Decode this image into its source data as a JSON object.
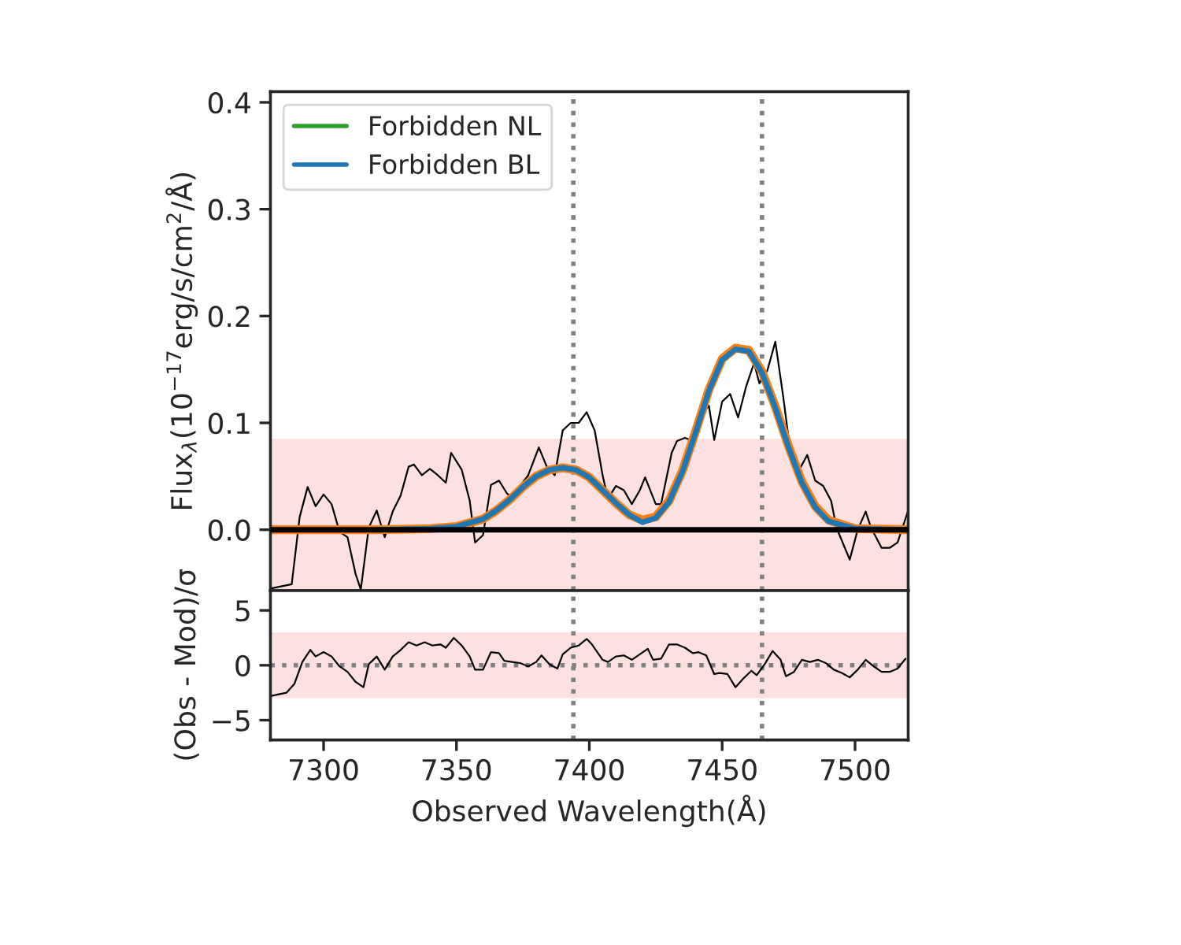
{
  "chart_data": [
    {
      "type": "line",
      "ylabel": "Flux$_{λ}$(10$^{−17}$erg/s/cm$^{2}$/Å)",
      "xlim": [
        7280,
        7520
      ],
      "xticks": [
        7300,
        7350,
        7400,
        7450,
        7500
      ],
      "ylim": [
        -0.057,
        0.41
      ],
      "yticks": [
        {
          "value": 0,
          "label": "0.0"
        },
        {
          "value": 0.1,
          "label": "0.1"
        },
        {
          "value": 0.2,
          "label": "0.2"
        },
        {
          "value": 0.3,
          "label": "0.3"
        },
        {
          "value": 0.4,
          "label": "0.4"
        }
      ],
      "tick_labels": "y",
      "grid": false,
      "legend": "top left",
      "line_style": "solid",
      "marker": "none",
      "series": [
        {
          "color": "#000000",
          "x": [
            7280,
            7288,
            7291,
            7294,
            7297,
            7300,
            7303,
            7306,
            7309,
            7312,
            7314,
            7317,
            7320,
            7323,
            7326,
            7329,
            7332,
            7334,
            7337,
            7340,
            7343,
            7346,
            7348,
            7352,
            7355,
            7357,
            7360,
            7363,
            7366,
            7369,
            7371,
            7374,
            7377,
            7381,
            7384,
            7387,
            7390,
            7393,
            7396,
            7399,
            7402,
            7405,
            7407,
            7410,
            7413,
            7416,
            7419,
            7421,
            7425,
            7427,
            7431,
            7433,
            7436,
            7439,
            7442,
            7445,
            7447,
            7450,
            7453,
            7456,
            7459,
            7462,
            7464,
            7467,
            7470,
            7473,
            7476,
            7479,
            7482,
            7485,
            7488,
            7491,
            7493,
            7495,
            7498,
            7501,
            7504,
            7506,
            7510,
            7513,
            7516,
            7520
          ],
          "values": [
            -0.055,
            -0.051,
            0.012,
            0.04,
            0.022,
            0.033,
            0.024,
            -0.002,
            -0.007,
            -0.041,
            -0.056,
            0.002,
            0.018,
            -0.007,
            0.017,
            0.032,
            0.059,
            0.061,
            0.051,
            0.057,
            0.051,
            0.044,
            0.072,
            0.056,
            0.027,
            -0.012,
            -0.005,
            0.042,
            0.046,
            0.034,
            0.03,
            0.041,
            0.051,
            0.077,
            0.059,
            0.051,
            0.093,
            0.1,
            0.1,
            0.11,
            0.093,
            0.051,
            0.029,
            0.041,
            0.037,
            0.024,
            0.037,
            0.049,
            0.024,
            0.024,
            0.072,
            0.083,
            0.086,
            0.083,
            0.107,
            0.116,
            0.084,
            0.12,
            0.127,
            0.105,
            0.134,
            0.156,
            0.137,
            0.149,
            0.176,
            0.124,
            0.066,
            0.056,
            0.07,
            0.046,
            0.041,
            0.027,
            0.002,
            -0.01,
            -0.028,
            0.0,
            0.017,
            0.002,
            -0.017,
            -0.017,
            -0.012,
            0.018
          ]
        },
        {
          "color": "#ff7f0e",
          "x": [
            7280,
            7300,
            7320,
            7340,
            7350,
            7360,
            7365,
            7370,
            7375,
            7380,
            7385,
            7390,
            7395,
            7400,
            7405,
            7410,
            7415,
            7420,
            7425,
            7430,
            7435,
            7440,
            7445,
            7450,
            7455,
            7460,
            7465,
            7470,
            7475,
            7480,
            7485,
            7490,
            7500,
            7520
          ],
          "values": [
            0,
            0,
            0,
            0.001,
            0.003,
            0.01,
            0.018,
            0.028,
            0.04,
            0.05,
            0.056,
            0.058,
            0.056,
            0.049,
            0.037,
            0.025,
            0.014,
            0.009,
            0.012,
            0.027,
            0.055,
            0.092,
            0.131,
            0.16,
            0.17,
            0.168,
            0.148,
            0.115,
            0.078,
            0.045,
            0.022,
            0.009,
            0.001,
            0
          ]
        },
        {
          "name": "Forbidden NL",
          "color": "#2ca02c",
          "values": [
            null
          ]
        },
        {
          "name": "Forbidden BL",
          "color": "#1f77b4",
          "x": [
            7320,
            7340,
            7350,
            7360,
            7365,
            7370,
            7375,
            7380,
            7385,
            7390,
            7395,
            7400,
            7405,
            7410,
            7415,
            7420,
            7425,
            7430,
            7435,
            7440,
            7445,
            7450,
            7455,
            7460,
            7465,
            7470,
            7475,
            7480,
            7485,
            7490,
            7500,
            7520
          ],
          "values": [
            0,
            0.001,
            0.003,
            0.01,
            0.018,
            0.028,
            0.04,
            0.05,
            0.056,
            0.058,
            0.056,
            0.049,
            0.037,
            0.025,
            0.014,
            0.007,
            0.011,
            0.026,
            0.054,
            0.091,
            0.13,
            0.159,
            0.169,
            0.167,
            0.147,
            0.114,
            0.077,
            0.044,
            0.021,
            0.008,
            0.001,
            0
          ]
        }
      ],
      "ref_lines": [
        {
          "axis": "x",
          "value": 7394,
          "color": "#808080",
          "line_style": "dotted"
        },
        {
          "axis": "x",
          "value": 7465,
          "color": "#808080",
          "line_style": "dotted"
        },
        {
          "axis": "y",
          "value": 0,
          "color": "#000000",
          "line_style": "solid"
        }
      ],
      "bands": [
        {
          "axis": "y",
          "from": -0.085,
          "to": 0.085,
          "color": "#fde1e0"
        }
      ]
    },
    {
      "type": "line",
      "xlabel": "Observed Wavelength(Å)",
      "ylabel": "(Obs - Mod)/σ",
      "xlim": [
        7280,
        7520
      ],
      "xticks": [
        7300,
        7350,
        7400,
        7450,
        7500
      ],
      "ylim": [
        -6.8,
        6.8
      ],
      "yticks": [
        {
          "value": -5,
          "label": "−5"
        },
        0,
        5
      ],
      "grid": false,
      "line_style": "solid",
      "marker": "none",
      "series": [
        {
          "color": "#000000",
          "x": [
            7280,
            7286,
            7289,
            7292,
            7295,
            7297,
            7300,
            7303,
            7306,
            7309,
            7312,
            7315,
            7317,
            7320,
            7323,
            7326,
            7329,
            7332,
            7335,
            7338,
            7341,
            7344,
            7346,
            7349,
            7352,
            7355,
            7357,
            7360,
            7363,
            7366,
            7368,
            7371,
            7374,
            7377,
            7380,
            7382,
            7385,
            7388,
            7390,
            7393,
            7396,
            7399,
            7401,
            7405,
            7407,
            7410,
            7413,
            7416,
            7419,
            7422,
            7424,
            7427,
            7430,
            7433,
            7436,
            7439,
            7441,
            7444,
            7447,
            7449,
            7452,
            7455,
            7458,
            7461,
            7463,
            7466,
            7469,
            7472,
            7474,
            7477,
            7480,
            7483,
            7486,
            7489,
            7492,
            7495,
            7498,
            7501,
            7504,
            7507,
            7510,
            7513,
            7516,
            7519
          ],
          "values": [
            -2.8,
            -2.5,
            -1.7,
            0.3,
            1.4,
            0.8,
            1.2,
            0.8,
            -0.1,
            -0.6,
            -1.5,
            -2.0,
            0.1,
            0.8,
            -0.4,
            0.8,
            1.4,
            2.1,
            1.8,
            2.1,
            1.8,
            1.9,
            1.6,
            2.5,
            1.8,
            0.8,
            -0.4,
            -0.4,
            1.2,
            1.1,
            0.4,
            0.3,
            0.2,
            -0.1,
            0.3,
            0.9,
            0.1,
            -0.3,
            1.0,
            1.6,
            1.8,
            2.4,
            1.9,
            0.5,
            0.3,
            0.8,
            0.9,
            0.5,
            1.0,
            1.5,
            0.5,
            0.6,
            1.9,
            1.9,
            1.6,
            1.1,
            1.2,
            0.9,
            -0.8,
            -0.7,
            -0.8,
            -2.0,
            -1.2,
            -0.5,
            -0.9,
            0.1,
            1.3,
            0.5,
            -1.0,
            -0.6,
            0.5,
            0.3,
            0.5,
            0.2,
            -0.4,
            -0.7,
            -1.1,
            -0.4,
            0.5,
            -0.1,
            -0.6,
            -0.6,
            -0.3,
            0.6
          ]
        }
      ],
      "ref_lines": [
        {
          "axis": "x",
          "value": 7394,
          "color": "#808080",
          "line_style": "dotted"
        },
        {
          "axis": "x",
          "value": 7465,
          "color": "#808080",
          "line_style": "dotted"
        },
        {
          "axis": "y",
          "value": 0,
          "color": "#808080",
          "line_style": "dotted"
        }
      ],
      "bands": [
        {
          "axis": "y",
          "from": -3,
          "to": 3,
          "color": "#fde1e0"
        }
      ]
    }
  ]
}
